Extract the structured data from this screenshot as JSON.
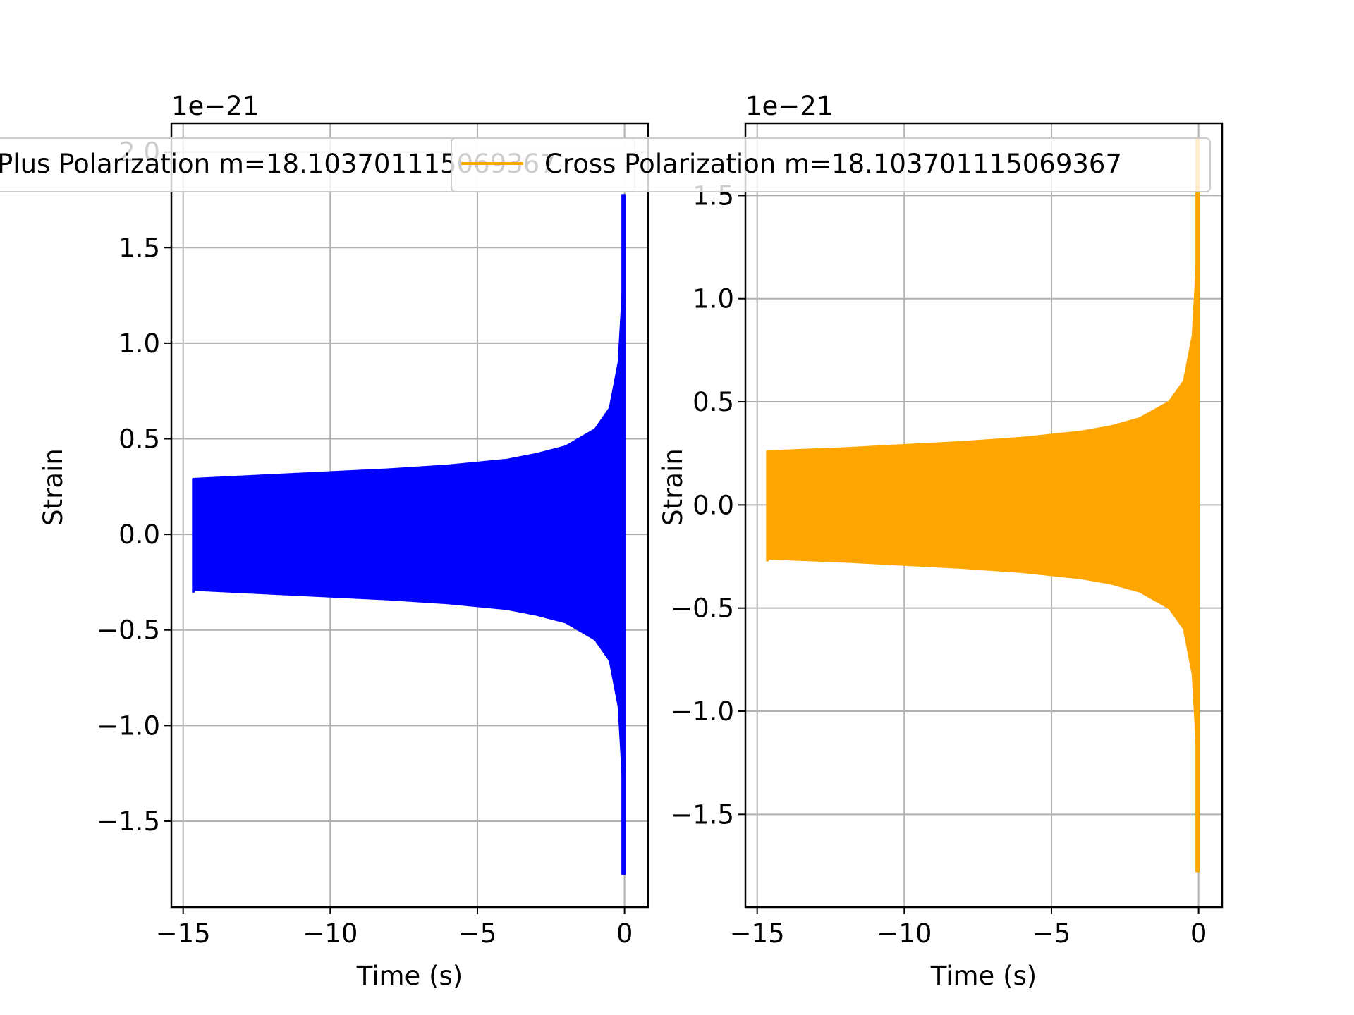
{
  "chart_data": [
    {
      "type": "line",
      "xlabel": "Time (s)",
      "ylabel": "Strain",
      "y_offset_text": "1e−21",
      "xlim": [
        -15.4,
        0.8
      ],
      "ylim": [
        -1.95,
        2.15
      ],
      "xticks": [
        -15,
        -10,
        -5,
        0
      ],
      "xtick_labels": [
        "−15",
        "−10",
        "−5",
        "0"
      ],
      "yticks": [
        -1.5,
        -1.0,
        -0.5,
        0.0,
        0.5,
        1.0,
        1.5,
        2.0
      ],
      "ytick_labels": [
        "−1.5",
        "−1.0",
        "−0.5",
        "0.0",
        "0.5",
        "1.0",
        "1.5",
        "2.0"
      ],
      "grid": true,
      "legend_position": "top-center",
      "series": [
        {
          "name": "Plus Polarization m=18.103701115069367",
          "color": "#0000ff",
          "t_start": -14.65,
          "t_end": 0.0,
          "envelope": {
            "t": [
              -14.65,
              -12,
              -10,
              -8,
              -6,
              -4,
              -3,
              -2,
              -1,
              -0.5,
              -0.2,
              -0.05,
              0.0
            ],
            "amplitude": [
              0.29,
              0.31,
              0.325,
              0.34,
              0.36,
              0.39,
              0.42,
              0.46,
              0.55,
              0.66,
              0.9,
              1.3,
              1.78
            ]
          }
        }
      ]
    },
    {
      "type": "line",
      "xlabel": "Time (s)",
      "ylabel": "Strain",
      "y_offset_text": "1e−21",
      "xlim": [
        -15.4,
        0.8
      ],
      "ylim": [
        -1.95,
        1.85
      ],
      "xticks": [
        -15,
        -10,
        -5,
        0
      ],
      "xtick_labels": [
        "−15",
        "−10",
        "−5",
        "0"
      ],
      "yticks": [
        -1.5,
        -1.0,
        -0.5,
        0.0,
        0.5,
        1.0,
        1.5
      ],
      "ytick_labels": [
        "−1.5",
        "−1.0",
        "−0.5",
        "0.0",
        "0.5",
        "1.0",
        "1.5"
      ],
      "grid": true,
      "legend_position": "top-center",
      "series": [
        {
          "name": "Cross Polarization m=18.103701115069367",
          "color": "#ffa500",
          "t_start": -14.65,
          "t_end": 0.0,
          "envelope": {
            "t": [
              -14.65,
              -12,
              -10,
              -8,
              -6,
              -4,
              -3,
              -2,
              -1,
              -0.5,
              -0.2,
              -0.05,
              0.0
            ],
            "amplitude": [
              0.26,
              0.275,
              0.29,
              0.305,
              0.325,
              0.355,
              0.38,
              0.42,
              0.5,
              0.6,
              0.82,
              1.2,
              1.78
            ]
          }
        }
      ]
    }
  ]
}
